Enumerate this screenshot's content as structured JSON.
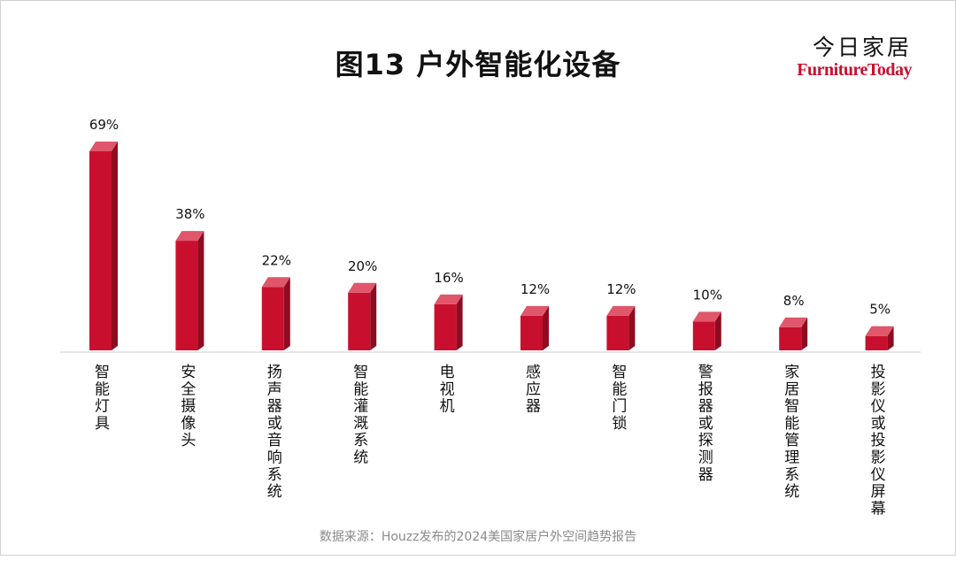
{
  "brand": {
    "name_cn": "今日家居",
    "name_en": "FurnitureToday"
  },
  "source_note": "数据来源：Houzz发布的2024美国家居户外空间趋势报告",
  "colors": {
    "bar_front": "#c8102e",
    "bar_side": "#8e0c20",
    "bar_top": "#e0566a",
    "axis": "#c8c8c8"
  },
  "chart_data": {
    "type": "bar",
    "title": "图13  户外智能化设备",
    "categories": [
      "智能灯具",
      "安全摄像头",
      "扬声器或音响系统",
      "智能灌溉系统",
      "电视机",
      "感应器",
      "智能门锁",
      "警报器或探测器",
      "家居智能管理系统",
      "投影仪或投影仪屏幕"
    ],
    "values": [
      69,
      38,
      22,
      20,
      16,
      12,
      12,
      10,
      8,
      5
    ],
    "value_labels": [
      "69%",
      "38%",
      "22%",
      "20%",
      "16%",
      "12%",
      "12%",
      "10%",
      "8%",
      "5%"
    ],
    "ylim": [
      0,
      70
    ],
    "unit": "%",
    "grid": false,
    "legend": "none"
  }
}
